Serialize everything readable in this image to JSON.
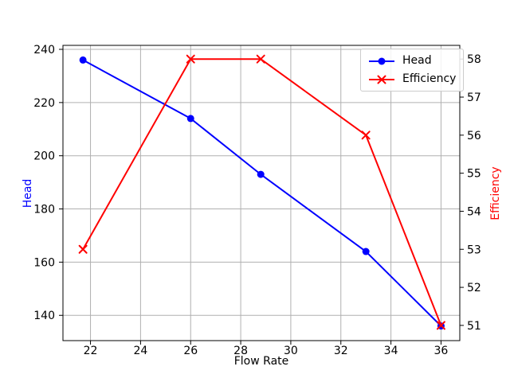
{
  "figure": {
    "background": "#ffffff",
    "text_color": "#000000",
    "grid_color": "#b0b0b0",
    "spine_color": "#000000"
  },
  "legend": {
    "position": "upper right",
    "items": [
      {
        "label": "Head",
        "color": "#0000ff",
        "marker": "circle"
      },
      {
        "label": "Efficiency",
        "color": "#ff0000",
        "marker": "x"
      }
    ]
  },
  "chart_data": {
    "type": "line",
    "title": "",
    "xlabel": "Flow Rate",
    "ylabel_left": "Head",
    "ylabel_right": "Efficiency",
    "ylabel_left_color": "#0000ff",
    "ylabel_right_color": "#ff0000",
    "x": [
      21.7,
      26,
      28.8,
      33,
      36
    ],
    "series": [
      {
        "name": "Head",
        "axis": "left",
        "color": "#0000ff",
        "marker": "circle",
        "values": [
          236,
          214,
          193,
          164,
          136
        ]
      },
      {
        "name": "Efficiency",
        "axis": "right",
        "color": "#ff0000",
        "marker": "x",
        "values": [
          53,
          58,
          58,
          56,
          51
        ]
      }
    ],
    "xticks": [
      22,
      24,
      26,
      28,
      30,
      32,
      34,
      36
    ],
    "yticks_left": [
      140,
      160,
      180,
      200,
      220,
      240
    ],
    "yticks_right": [
      51,
      52,
      53,
      54,
      55,
      56,
      57,
      58
    ],
    "xlim": [
      20.9,
      36.75
    ],
    "ylim_left": [
      130.5,
      241.5
    ],
    "ylim_right": [
      50.6,
      58.36
    ],
    "grid": true,
    "legend_position": "upper right"
  }
}
